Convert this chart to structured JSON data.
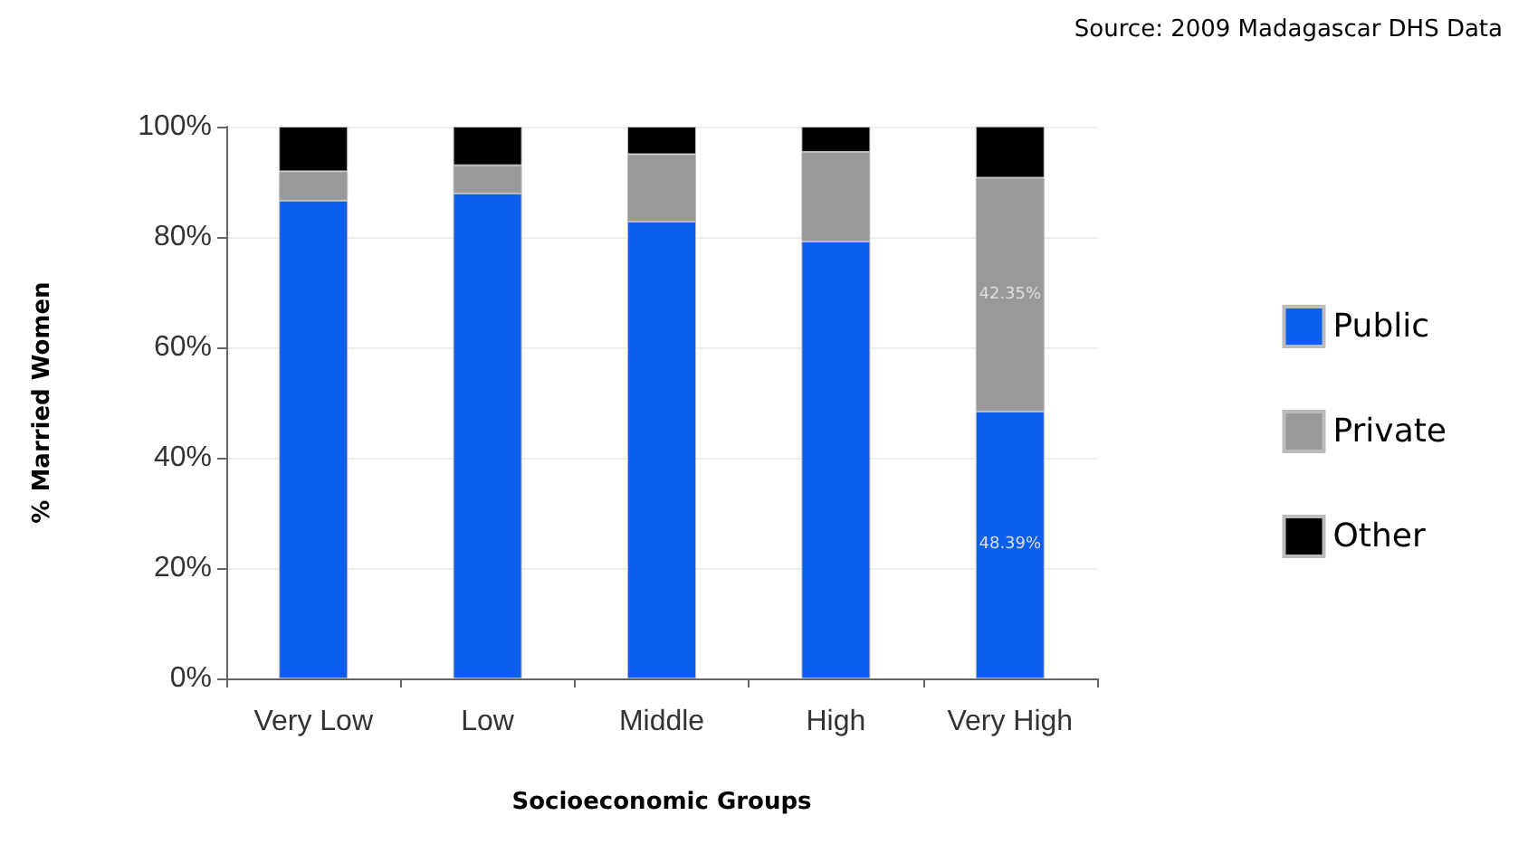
{
  "chart_data": {
    "type": "bar",
    "stacked": true,
    "xlabel": "Socioeconomic Groups",
    "ylabel": "% Married Women",
    "annotations": [
      "Source: 2009 Madagascar DHS Data"
    ],
    "categories": [
      "Very Low",
      "Low",
      "Middle",
      "High",
      "Very High"
    ],
    "series": [
      {
        "name": "Public",
        "color": "#0b5fec",
        "values": [
          86.6,
          87.9,
          82.8,
          79.2,
          48.39
        ],
        "value_labels": [
          null,
          null,
          null,
          null,
          "48.39%"
        ]
      },
      {
        "name": "Private",
        "color": "#999999",
        "values": [
          5.3,
          5.1,
          12.2,
          16.2,
          42.35
        ],
        "value_labels": [
          null,
          null,
          null,
          null,
          "42.35%"
        ]
      },
      {
        "name": "Other",
        "color": "#000000",
        "values": [
          8.1,
          7.0,
          5.0,
          4.6,
          9.3
        ]
      }
    ],
    "ylim": [
      0,
      100
    ],
    "yticks": [
      {
        "value": 0,
        "label": "0%"
      },
      {
        "value": 20,
        "label": "20%"
      },
      {
        "value": 40,
        "label": "40%"
      },
      {
        "value": 60,
        "label": "60%"
      },
      {
        "value": 80,
        "label": "80%"
      },
      {
        "value": 100,
        "label": "100%"
      }
    ],
    "grid": "y",
    "legend": "right"
  }
}
